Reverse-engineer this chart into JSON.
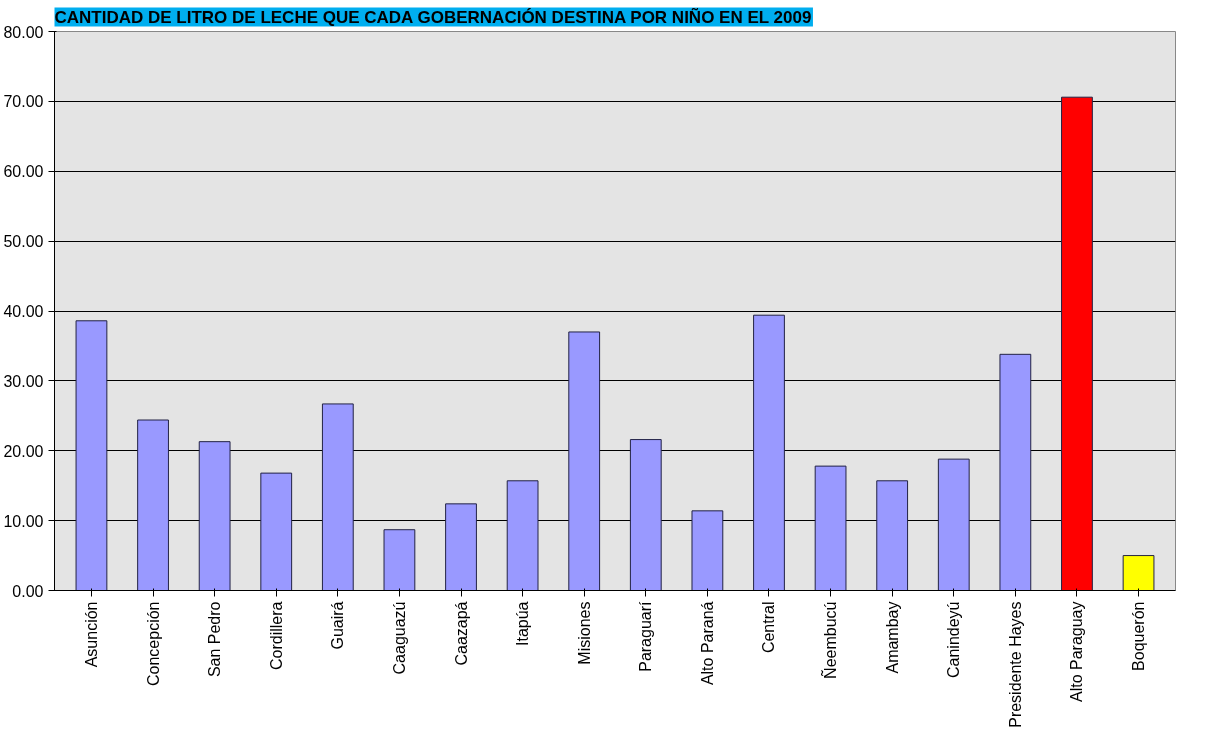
{
  "chart_data": {
    "type": "bar",
    "title": "CANTIDAD DE LITRO DE LECHE QUE CADA GOBERNACIÓN DESTINA POR NIÑO EN EL 2009",
    "categories": [
      "Asunción",
      "Concepción",
      "San Pedro",
      "Cordillera",
      "Guairá",
      "Caaguazú",
      "Caazapá",
      "Itapúa",
      "Misiones",
      "Paraguarí",
      "Alto Paraná",
      "Central",
      "Ñeembucú",
      "Amambay",
      "Canindeyú",
      "Presidente Hayes",
      "Alto Paraguay",
      "Boquerón"
    ],
    "values": [
      38.6,
      24.4,
      21.3,
      16.8,
      26.7,
      8.7,
      12.4,
      15.7,
      37.0,
      21.6,
      11.4,
      39.4,
      17.8,
      15.7,
      18.8,
      33.8,
      70.6,
      5.0
    ],
    "colors": [
      "#9999ff",
      "#9999ff",
      "#9999ff",
      "#9999ff",
      "#9999ff",
      "#9999ff",
      "#9999ff",
      "#9999ff",
      "#9999ff",
      "#9999ff",
      "#9999ff",
      "#9999ff",
      "#9999ff",
      "#9999ff",
      "#9999ff",
      "#9999ff",
      "#ff0000",
      "#ffff00"
    ],
    "ylim": [
      0,
      80
    ],
    "yticks": [
      {
        "value": 0,
        "label": "0.00"
      },
      {
        "value": 10,
        "label": "10.00"
      },
      {
        "value": 20,
        "label": "20.00"
      },
      {
        "value": 30,
        "label": "30.00"
      },
      {
        "value": 40,
        "label": "40.00"
      },
      {
        "value": 50,
        "label": "50.00"
      },
      {
        "value": 60,
        "label": "60.00"
      },
      {
        "value": 70,
        "label": "70.00"
      },
      {
        "value": 80,
        "label": "80.00"
      }
    ],
    "grid": "y"
  }
}
